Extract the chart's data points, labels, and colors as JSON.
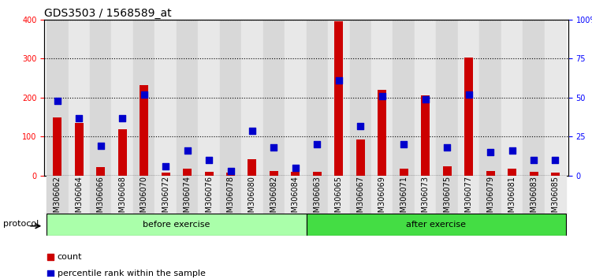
{
  "title": "GDS3503 / 1568589_at",
  "categories": [
    "GSM306062",
    "GSM306064",
    "GSM306066",
    "GSM306068",
    "GSM306070",
    "GSM306072",
    "GSM306074",
    "GSM306076",
    "GSM306078",
    "GSM306080",
    "GSM306082",
    "GSM306084",
    "GSM306063",
    "GSM306065",
    "GSM306067",
    "GSM306069",
    "GSM306071",
    "GSM306073",
    "GSM306075",
    "GSM306077",
    "GSM306079",
    "GSM306081",
    "GSM306083",
    "GSM306085"
  ],
  "counts": [
    150,
    135,
    22,
    120,
    232,
    8,
    18,
    10,
    8,
    42,
    12,
    10,
    10,
    395,
    92,
    220,
    18,
    205,
    25,
    302,
    13,
    18,
    10,
    8
  ],
  "percentiles": [
    48,
    37,
    19,
    37,
    52,
    6,
    16,
    10,
    3,
    29,
    18,
    5,
    20,
    61,
    32,
    51,
    20,
    49,
    18,
    52,
    15,
    16,
    10,
    10
  ],
  "before_count": 12,
  "after_count": 12,
  "before_label": "before exercise",
  "after_label": "after exercise",
  "protocol_label": "protocol",
  "bar_color": "#cc0000",
  "dot_color": "#0000cc",
  "before_bg": "#aaffaa",
  "after_bg": "#44dd44",
  "ylim_left": [
    0,
    400
  ],
  "ylim_right": [
    0,
    100
  ],
  "yticks_left": [
    0,
    100,
    200,
    300,
    400
  ],
  "yticks_right": [
    0,
    25,
    50,
    75,
    100
  ],
  "ytick_labels_right": [
    "0",
    "25",
    "50",
    "75",
    "100%"
  ],
  "title_fontsize": 10,
  "tick_fontsize": 7,
  "label_fontsize": 8,
  "legend_count_label": "count",
  "legend_pct_label": "percentile rank within the sample"
}
